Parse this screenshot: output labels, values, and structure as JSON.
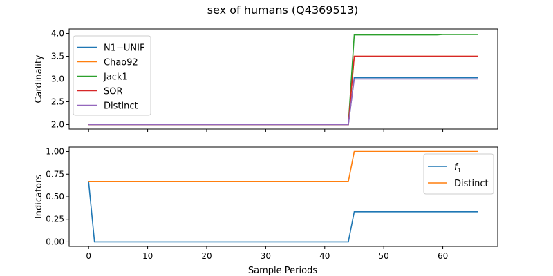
{
  "chart_data": {
    "type": "line",
    "title": "sex of humans (Q4369513)",
    "xlabel": "Sample Periods",
    "xlim": [
      -3.3,
      69.3
    ],
    "xticks": [
      0,
      10,
      20,
      30,
      40,
      50,
      60
    ],
    "x": [
      0,
      1,
      2,
      3,
      4,
      5,
      6,
      7,
      8,
      9,
      10,
      11,
      12,
      13,
      14,
      15,
      16,
      17,
      18,
      19,
      20,
      21,
      22,
      23,
      24,
      25,
      26,
      27,
      28,
      29,
      30,
      31,
      32,
      33,
      34,
      35,
      36,
      37,
      38,
      39,
      40,
      41,
      42,
      43,
      44,
      45,
      46,
      47,
      48,
      49,
      50,
      51,
      52,
      53,
      54,
      55,
      56,
      57,
      58,
      59,
      60,
      61,
      62,
      63,
      64,
      65,
      66
    ],
    "panels": [
      {
        "ylabel": "Cardinality",
        "ylim": [
          1.9,
          4.1
        ],
        "yticks": [
          "2.0",
          "2.5",
          "3.0",
          "3.5",
          "4.0"
        ],
        "legend_position": "top-left",
        "series": [
          {
            "name": "N1−UNIF",
            "color": "#1f77b4",
            "values": [
              2,
              2,
              2,
              2,
              2,
              2,
              2,
              2,
              2,
              2,
              2,
              2,
              2,
              2,
              2,
              2,
              2,
              2,
              2,
              2,
              2,
              2,
              2,
              2,
              2,
              2,
              2,
              2,
              2,
              2,
              2,
              2,
              2,
              2,
              2,
              2,
              2,
              2,
              2,
              2,
              2,
              2,
              2,
              2,
              2,
              3.03,
              3.03,
              3.03,
              3.03,
              3.03,
              3.03,
              3.03,
              3.03,
              3.03,
              3.03,
              3.03,
              3.03,
              3.03,
              3.03,
              3.03,
              3.03,
              3.03,
              3.03,
              3.03,
              3.03,
              3.03,
              3.03
            ]
          },
          {
            "name": "Chao92",
            "color": "#ff7f0e",
            "values": [
              2,
              2,
              2,
              2,
              2,
              2,
              2,
              2,
              2,
              2,
              2,
              2,
              2,
              2,
              2,
              2,
              2,
              2,
              2,
              2,
              2,
              2,
              2,
              2,
              2,
              2,
              2,
              2,
              2,
              2,
              2,
              2,
              2,
              2,
              2,
              2,
              2,
              2,
              2,
              2,
              2,
              2,
              2,
              2,
              2,
              3.5,
              3.5,
              3.5,
              3.5,
              3.5,
              3.5,
              3.5,
              3.5,
              3.5,
              3.5,
              3.5,
              3.5,
              3.5,
              3.5,
              3.5,
              3.5,
              3.5,
              3.5,
              3.5,
              3.5,
              3.5,
              3.5
            ]
          },
          {
            "name": "Jack1",
            "color": "#2ca02c",
            "values": [
              2,
              2,
              2,
              2,
              2,
              2,
              2,
              2,
              2,
              2,
              2,
              2,
              2,
              2,
              2,
              2,
              2,
              2,
              2,
              2,
              2,
              2,
              2,
              2,
              2,
              2,
              2,
              2,
              2,
              2,
              2,
              2,
              2,
              2,
              2,
              2,
              2,
              2,
              2,
              2,
              2,
              2,
              2,
              2,
              2,
              3.97,
              3.97,
              3.97,
              3.97,
              3.97,
              3.97,
              3.97,
              3.97,
              3.97,
              3.97,
              3.97,
              3.97,
              3.97,
              3.97,
              3.97,
              3.98,
              3.98,
              3.98,
              3.98,
              3.98,
              3.98,
              3.98
            ]
          },
          {
            "name": "SOR",
            "color": "#d62728",
            "values": [
              2,
              2,
              2,
              2,
              2,
              2,
              2,
              2,
              2,
              2,
              2,
              2,
              2,
              2,
              2,
              2,
              2,
              2,
              2,
              2,
              2,
              2,
              2,
              2,
              2,
              2,
              2,
              2,
              2,
              2,
              2,
              2,
              2,
              2,
              2,
              2,
              2,
              2,
              2,
              2,
              2,
              2,
              2,
              2,
              2,
              3.5,
              3.5,
              3.5,
              3.5,
              3.5,
              3.5,
              3.5,
              3.5,
              3.5,
              3.5,
              3.5,
              3.5,
              3.5,
              3.5,
              3.5,
              3.5,
              3.5,
              3.5,
              3.5,
              3.5,
              3.5,
              3.5
            ]
          },
          {
            "name": "Distinct",
            "color": "#9467bd",
            "values": [
              2,
              2,
              2,
              2,
              2,
              2,
              2,
              2,
              2,
              2,
              2,
              2,
              2,
              2,
              2,
              2,
              2,
              2,
              2,
              2,
              2,
              2,
              2,
              2,
              2,
              2,
              2,
              2,
              2,
              2,
              2,
              2,
              2,
              2,
              2,
              2,
              2,
              2,
              2,
              2,
              2,
              2,
              2,
              2,
              2,
              3,
              3,
              3,
              3,
              3,
              3,
              3,
              3,
              3,
              3,
              3,
              3,
              3,
              3,
              3,
              3,
              3,
              3,
              3,
              3,
              3,
              3
            ]
          }
        ]
      },
      {
        "ylabel": "Indicators",
        "ylim": [
          -0.05,
          1.05
        ],
        "yticks": [
          "0.00",
          "0.25",
          "0.50",
          "0.75",
          "1.00"
        ],
        "legend_position": "top-right",
        "series": [
          {
            "name": "f",
            "name_sub": "1",
            "color": "#1f77b4",
            "values": [
              0.667,
              0,
              0,
              0,
              0,
              0,
              0,
              0,
              0,
              0,
              0,
              0,
              0,
              0,
              0,
              0,
              0,
              0,
              0,
              0,
              0,
              0,
              0,
              0,
              0,
              0,
              0,
              0,
              0,
              0,
              0,
              0,
              0,
              0,
              0,
              0,
              0,
              0,
              0,
              0,
              0,
              0,
              0,
              0,
              0,
              0.333,
              0.333,
              0.333,
              0.333,
              0.333,
              0.333,
              0.333,
              0.333,
              0.333,
              0.333,
              0.333,
              0.333,
              0.333,
              0.333,
              0.333,
              0.333,
              0.333,
              0.333,
              0.333,
              0.333,
              0.333,
              0.333
            ]
          },
          {
            "name": "Distinct",
            "color": "#ff7f0e",
            "values": [
              0.667,
              0.667,
              0.667,
              0.667,
              0.667,
              0.667,
              0.667,
              0.667,
              0.667,
              0.667,
              0.667,
              0.667,
              0.667,
              0.667,
              0.667,
              0.667,
              0.667,
              0.667,
              0.667,
              0.667,
              0.667,
              0.667,
              0.667,
              0.667,
              0.667,
              0.667,
              0.667,
              0.667,
              0.667,
              0.667,
              0.667,
              0.667,
              0.667,
              0.667,
              0.667,
              0.667,
              0.667,
              0.667,
              0.667,
              0.667,
              0.667,
              0.667,
              0.667,
              0.667,
              0.667,
              1,
              1,
              1,
              1,
              1,
              1,
              1,
              1,
              1,
              1,
              1,
              1,
              1,
              1,
              1,
              1,
              1,
              1,
              1,
              1,
              1,
              1
            ]
          }
        ]
      }
    ]
  }
}
